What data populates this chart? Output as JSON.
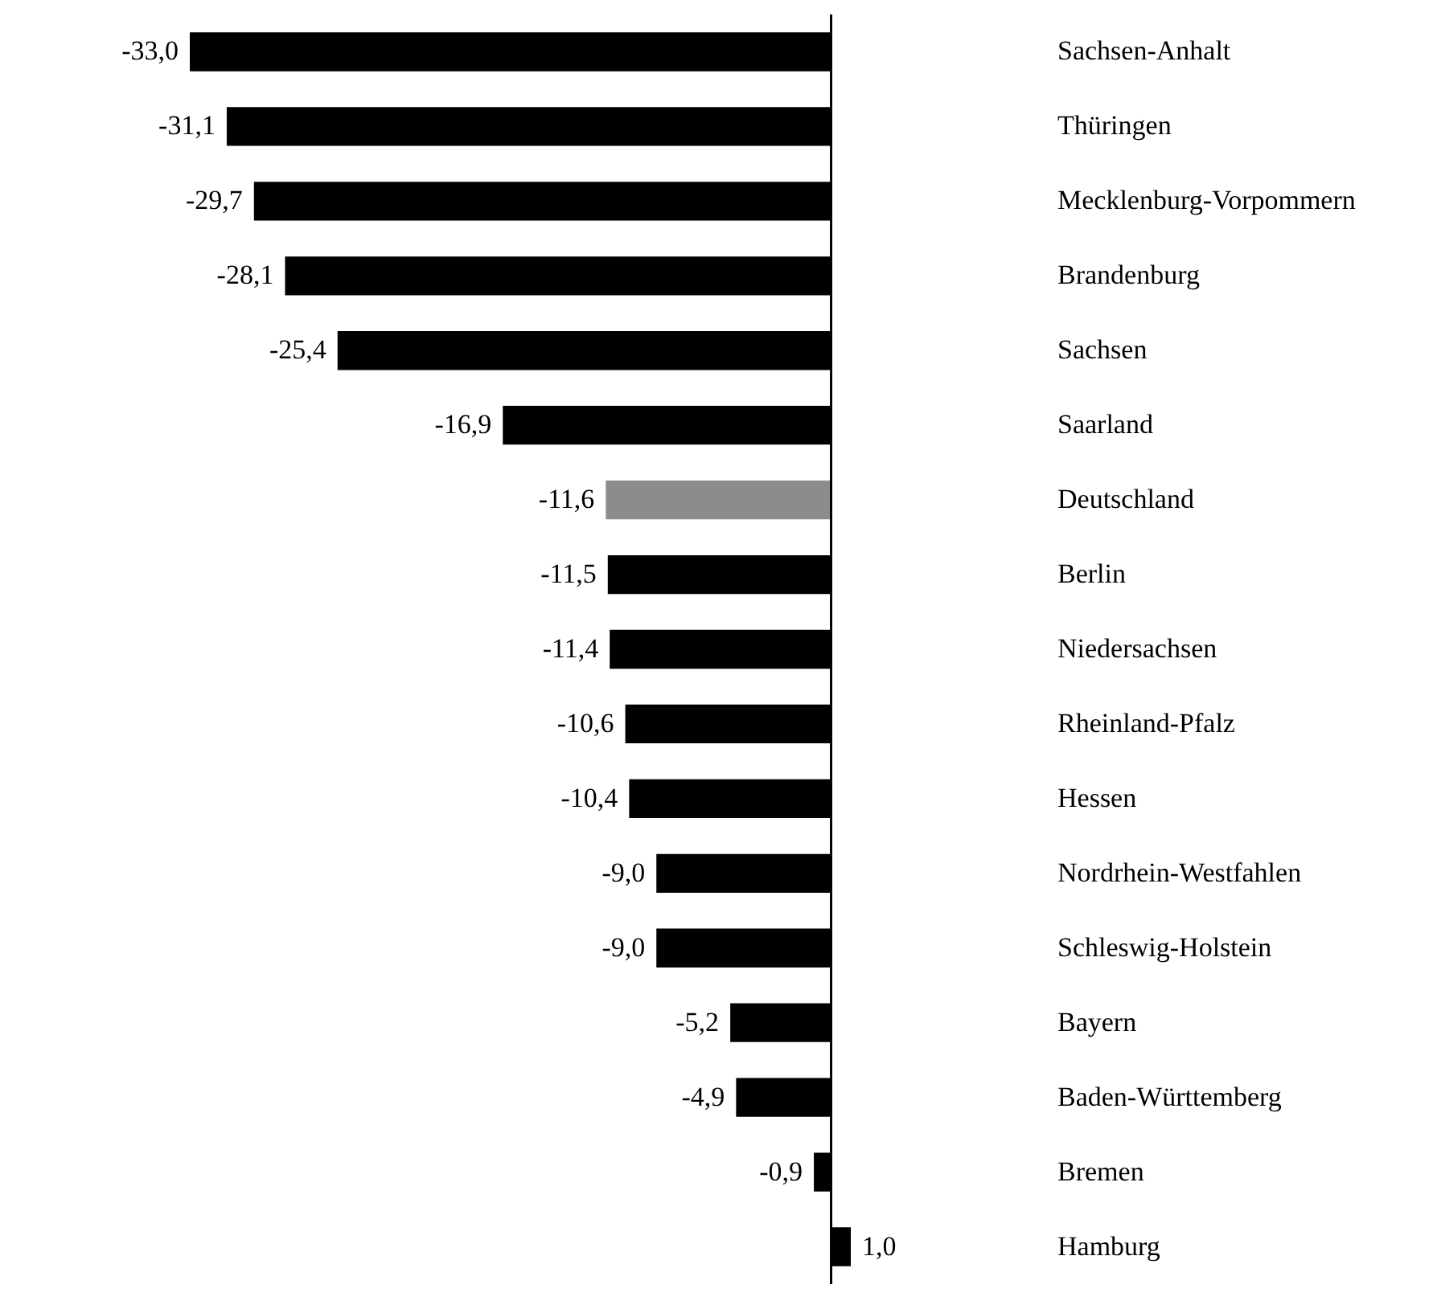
{
  "chart_data": {
    "type": "bar",
    "orientation": "horizontal",
    "categories": [
      "Sachsen-Anhalt",
      "Thüringen",
      "Mecklenburg-Vorpommern",
      "Brandenburg",
      "Sachsen",
      "Saarland",
      "Deutschland",
      "Berlin",
      "Niedersachsen",
      "Rheinland-Pfalz",
      "Hessen",
      "Nordrhein-Westfahlen",
      "Schleswig-Holstein",
      "Bayern",
      "Baden-Württemberg",
      "Bremen",
      "Hamburg"
    ],
    "values": [
      -33.0,
      -31.1,
      -29.7,
      -28.1,
      -25.4,
      -16.9,
      -11.6,
      -11.5,
      -11.4,
      -10.6,
      -10.4,
      -9.0,
      -9.0,
      -5.2,
      -4.9,
      -0.9,
      1.0
    ],
    "value_labels": [
      "-33,0",
      "-31,1",
      "-29,7",
      "-28,1",
      "-25,4",
      "-16,9",
      "-11,6",
      "-11,5",
      "-11,4",
      "-10,6",
      "-10,4",
      "-9,0",
      "-9,0",
      "-5,2",
      "-4,9",
      "-0,9",
      "1,0"
    ],
    "colors": [
      "#000000",
      "#000000",
      "#000000",
      "#000000",
      "#000000",
      "#000000",
      "#8c8c8c",
      "#000000",
      "#000000",
      "#000000",
      "#000000",
      "#000000",
      "#000000",
      "#000000",
      "#000000",
      "#000000",
      "#000000"
    ]
  }
}
